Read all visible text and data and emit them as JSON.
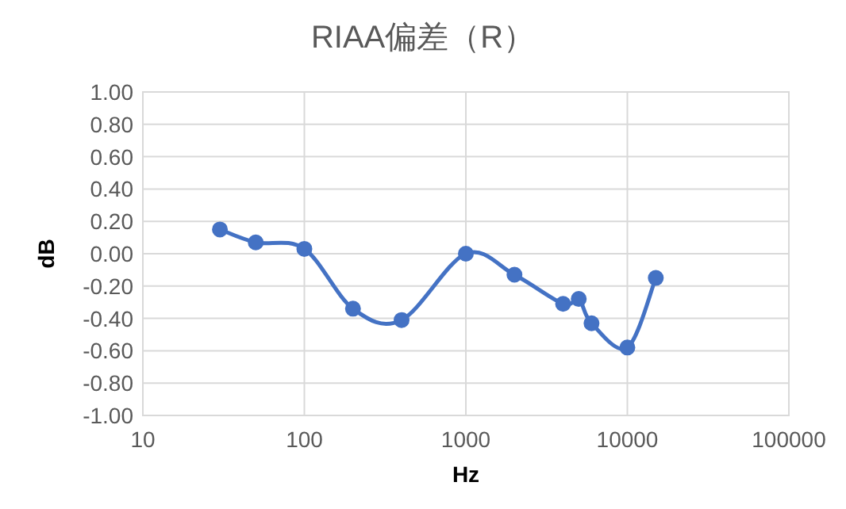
{
  "chart_data": {
    "type": "line",
    "title": "RIAA偏差（R）",
    "xlabel": "Hz",
    "ylabel": "dB",
    "x": [
      30,
      50,
      100,
      200,
      400,
      1000,
      2000,
      4000,
      5000,
      6000,
      10000,
      15000
    ],
    "series": [
      {
        "color": "#4472c4",
        "values": [
          0.15,
          0.07,
          0.03,
          -0.34,
          -0.41,
          0.0,
          -0.13,
          -0.31,
          -0.28,
          -0.43,
          -0.58,
          -0.15
        ]
      }
    ],
    "log": "x",
    "xlim": [
      10,
      100000
    ],
    "xticks": [
      10,
      100,
      1000,
      10000,
      100000
    ],
    "ylim": [
      -1,
      1
    ],
    "yticks": [
      {
        "value": -1,
        "label": "-1.00"
      },
      {
        "value": -0.8,
        "label": "-0.80"
      },
      {
        "value": -0.6,
        "label": "-0.60"
      },
      {
        "value": -0.4,
        "label": "-0.40"
      },
      {
        "value": -0.2,
        "label": "-0.20"
      },
      {
        "value": 0,
        "label": "0.00"
      },
      {
        "value": 0.2,
        "label": "0.20"
      },
      {
        "value": 0.4,
        "label": "0.40"
      },
      {
        "value": 0.6,
        "label": "0.60"
      },
      {
        "value": 0.8,
        "label": "0.80"
      },
      {
        "value": 1,
        "label": "1.00"
      }
    ],
    "grid": true,
    "marker": "circle",
    "line_style": "solid"
  }
}
